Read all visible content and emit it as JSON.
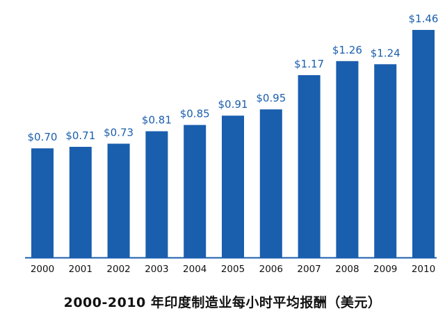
{
  "chart_data": {
    "type": "bar",
    "title": "2000-2010 年印度制造业每小时平均报酬（美元）",
    "categories": [
      "2000",
      "2001",
      "2002",
      "2003",
      "2004",
      "2005",
      "2006",
      "2007",
      "2008",
      "2009",
      "2010"
    ],
    "values": [
      0.7,
      0.71,
      0.73,
      0.81,
      0.85,
      0.91,
      0.95,
      1.17,
      1.26,
      1.24,
      1.46
    ],
    "value_labels": [
      "$0.70",
      "$0.71",
      "$0.73",
      "$0.81",
      "$0.85",
      "$0.91",
      "$0.95",
      "$1.17",
      "$1.26",
      "$1.24",
      "$1.46"
    ],
    "xlabel": "",
    "ylabel": "",
    "ylim": [
      0,
      1.46
    ],
    "grid": false,
    "bar_color": "#1a5eae",
    "label_color": "#1a5eae",
    "baseline_color": "#1a5eae"
  }
}
